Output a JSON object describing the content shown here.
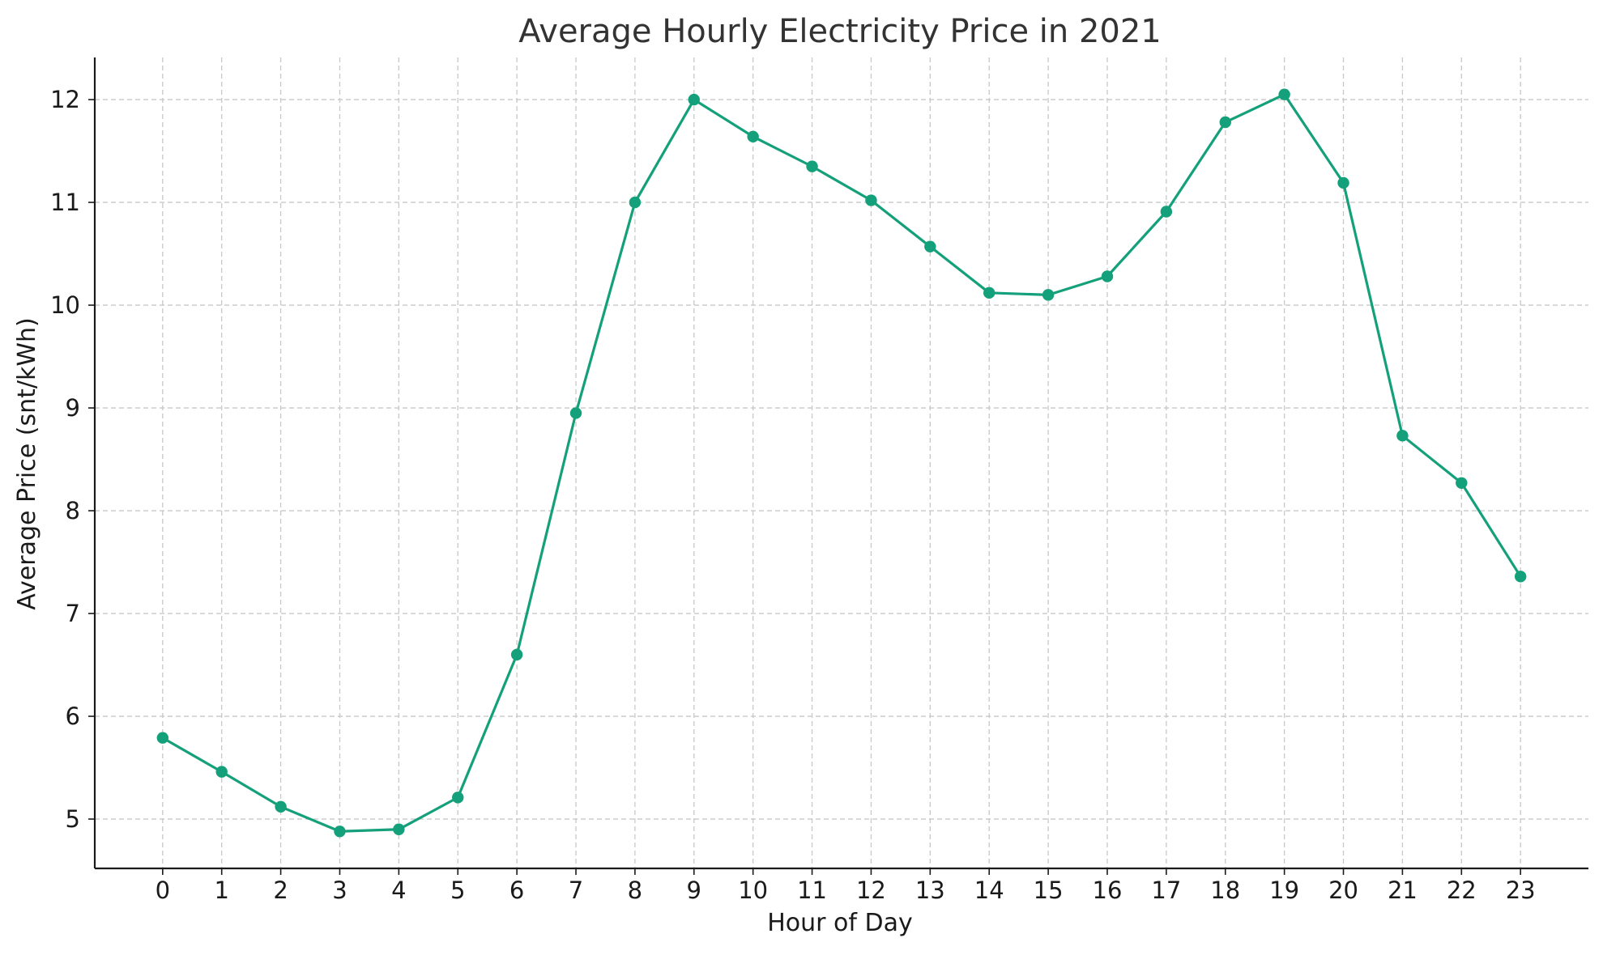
{
  "chart_data": {
    "type": "line",
    "title": "Average Hourly Electricity Price in 2021",
    "xlabel": "Hour of Day",
    "ylabel": "Average Price (snt/kWh)",
    "x": [
      0,
      1,
      2,
      3,
      4,
      5,
      6,
      7,
      8,
      9,
      10,
      11,
      12,
      13,
      14,
      15,
      16,
      17,
      18,
      19,
      20,
      21,
      22,
      23
    ],
    "x_tick_labels": [
      "0",
      "1",
      "2",
      "3",
      "4",
      "5",
      "6",
      "7",
      "8",
      "9",
      "10",
      "11",
      "12",
      "13",
      "14",
      "15",
      "16",
      "17",
      "18",
      "19",
      "20",
      "21",
      "22",
      "23"
    ],
    "y_ticks": [
      5,
      6,
      7,
      8,
      9,
      10,
      11,
      12
    ],
    "y_tick_labels": [
      "5",
      "6",
      "7",
      "8",
      "9",
      "10",
      "11",
      "12"
    ],
    "series": [
      {
        "values": [
          5.79,
          5.46,
          5.12,
          4.88,
          4.9,
          5.21,
          6.6,
          8.95,
          11.0,
          12.0,
          11.64,
          11.35,
          11.02,
          10.57,
          10.12,
          10.1,
          10.28,
          10.91,
          11.78,
          12.05,
          11.19,
          8.73,
          8.27,
          7.36
        ],
        "color": "#14a07a",
        "marker": "circle"
      }
    ],
    "xlim": [
      -1.15,
      24.15
    ],
    "ylim": [
      4.52,
      12.41
    ],
    "grid": true,
    "legend": "none"
  }
}
